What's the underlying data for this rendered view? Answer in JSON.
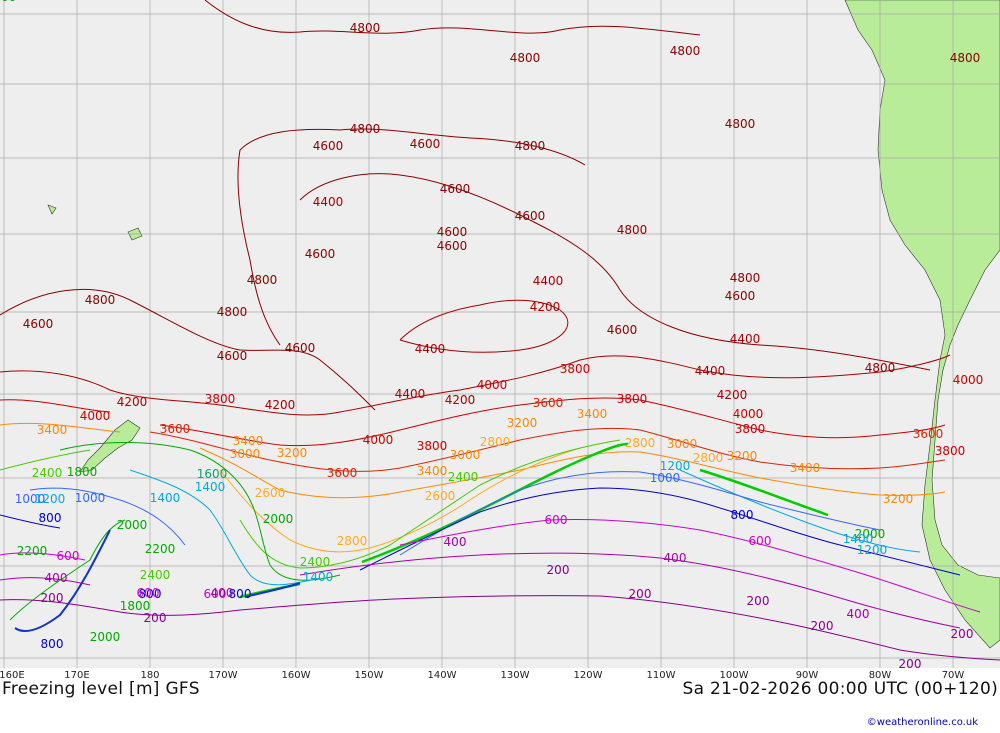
{
  "footer": {
    "title": "Freezing level [m] GFS",
    "valid_time": "Sa 21-02-2026 00:00 UTC (00+120)",
    "credit": "©weatheronline.co.uk"
  },
  "axis": {
    "longitude_labels": [
      "160E",
      "170E",
      "180",
      "170W",
      "160W",
      "150W",
      "140W",
      "130W",
      "120W",
      "110W",
      "100W",
      "90W",
      "80W",
      "70W"
    ]
  },
  "colors": {
    "ocean": "#eeeeee",
    "land": "#b8ec98",
    "grid": "#aaaaaa",
    "c4800": "#8b0000",
    "c4400": "#a80000",
    "c4000": "#cc0000",
    "c3600": "#dd2200",
    "c3200": "#ff8800",
    "c2800": "#ffaa22",
    "c2400": "#44cc00",
    "c2000": "#00aa00",
    "c1600": "#00aa66",
    "c1200": "#00aadd",
    "c1000": "#3366ff",
    "c800": "#0000cc",
    "c600": "#cc00cc",
    "c400": "#aa00aa",
    "c200": "#880088"
  },
  "contour_labels": [
    {
      "text": "4800",
      "color": "c4800"
    },
    {
      "text": "4800",
      "color": "c4800"
    },
    {
      "text": "4800",
      "color": "c4800"
    },
    {
      "text": "4800",
      "color": "c4800"
    },
    {
      "text": "4800",
      "color": "c4800"
    },
    {
      "text": "4800",
      "color": "c4800"
    },
    {
      "text": "4800",
      "color": "c4800"
    },
    {
      "text": "4800",
      "color": "c4800"
    },
    {
      "text": "4800",
      "color": "c4800"
    },
    {
      "text": "4800",
      "color": "c4800"
    },
    {
      "text": "4800",
      "color": "c4800"
    },
    {
      "text": "4800",
      "color": "c4800"
    },
    {
      "text": "4800",
      "color": "c4800"
    },
    {
      "text": "4600",
      "color": "c4800"
    },
    {
      "text": "4600",
      "color": "c4800"
    },
    {
      "text": "4600",
      "color": "c4800"
    },
    {
      "text": "4600",
      "color": "c4800"
    },
    {
      "text": "4600",
      "color": "c4800"
    },
    {
      "text": "4600",
      "color": "c4800"
    },
    {
      "text": "4600",
      "color": "c4800"
    },
    {
      "text": "4600",
      "color": "c4800"
    },
    {
      "text": "4600",
      "color": "c4800"
    },
    {
      "text": "4600",
      "color": "c4800"
    },
    {
      "text": "4600",
      "color": "c4800"
    },
    {
      "text": "4600",
      "color": "c4800"
    },
    {
      "text": "4400",
      "color": "c4400"
    },
    {
      "text": "4400",
      "color": "c4400"
    },
    {
      "text": "4400",
      "color": "c4400"
    },
    {
      "text": "4400",
      "color": "c4400"
    },
    {
      "text": "4400",
      "color": "c4400"
    },
    {
      "text": "4400",
      "color": "c4400"
    },
    {
      "text": "4200",
      "color": "c4400"
    },
    {
      "text": "4200",
      "color": "c4400"
    },
    {
      "text": "4200",
      "color": "c4400"
    },
    {
      "text": "4200",
      "color": "c4400"
    },
    {
      "text": "4200",
      "color": "c4400"
    },
    {
      "text": "4000",
      "color": "c4000"
    },
    {
      "text": "4000",
      "color": "c4000"
    },
    {
      "text": "4000",
      "color": "c4000"
    },
    {
      "text": "4000",
      "color": "c4000"
    },
    {
      "text": "4000",
      "color": "c4000"
    },
    {
      "text": "3800",
      "color": "c4000"
    },
    {
      "text": "3800",
      "color": "c4000"
    },
    {
      "text": "3800",
      "color": "c4000"
    },
    {
      "text": "3800",
      "color": "c4000"
    },
    {
      "text": "3800",
      "color": "c4000"
    },
    {
      "text": "3800",
      "color": "c4000"
    },
    {
      "text": "3600",
      "color": "c3600"
    },
    {
      "text": "3600",
      "color": "c3600"
    },
    {
      "text": "3600",
      "color": "c3600"
    },
    {
      "text": "3600",
      "color": "c3600"
    },
    {
      "text": "3400",
      "color": "c3200"
    },
    {
      "text": "3400",
      "color": "c3200"
    },
    {
      "text": "3400",
      "color": "c3200"
    },
    {
      "text": "3400",
      "color": "c3200"
    },
    {
      "text": "3400",
      "color": "c3200"
    },
    {
      "text": "3200",
      "color": "c3200"
    },
    {
      "text": "3200",
      "color": "c3200"
    },
    {
      "text": "3200",
      "color": "c3200"
    },
    {
      "text": "3200",
      "color": "c3200"
    },
    {
      "text": "3000",
      "color": "c3200"
    },
    {
      "text": "3000",
      "color": "c3200"
    },
    {
      "text": "3000",
      "color": "c3200"
    },
    {
      "text": "2800",
      "color": "c2800"
    },
    {
      "text": "2800",
      "color": "c2800"
    },
    {
      "text": "2800",
      "color": "c2800"
    },
    {
      "text": "2800",
      "color": "c2800"
    },
    {
      "text": "2600",
      "color": "c2800"
    },
    {
      "text": "2600",
      "color": "c2800"
    },
    {
      "text": "2400",
      "color": "c2400"
    },
    {
      "text": "2400",
      "color": "c2400"
    },
    {
      "text": "2400",
      "color": "c2400"
    },
    {
      "text": "2400",
      "color": "c2400"
    },
    {
      "text": "2200",
      "color": "c2000"
    },
    {
      "text": "2200",
      "color": "c2000"
    },
    {
      "text": "2000",
      "color": "c2000"
    },
    {
      "text": "2000",
      "color": "c2000"
    },
    {
      "text": "2000",
      "color": "c2000"
    },
    {
      "text": "2000",
      "color": "c2000"
    },
    {
      "text": "2200",
      "color": "c2000"
    },
    {
      "text": "1800",
      "color": "c2000"
    },
    {
      "text": "1800",
      "color": "c2000"
    },
    {
      "text": "1600",
      "color": "c1600"
    },
    {
      "text": "1400",
      "color": "c1200"
    },
    {
      "text": "1400",
      "color": "c1200"
    },
    {
      "text": "1400",
      "color": "c1200"
    },
    {
      "text": "1400",
      "color": "c1200"
    },
    {
      "text": "1200",
      "color": "c1200"
    },
    {
      "text": "1200",
      "color": "c1200"
    },
    {
      "text": "1200",
      "color": "c1200"
    },
    {
      "text": "1000",
      "color": "c1000"
    },
    {
      "text": "1000",
      "color": "c1000"
    },
    {
      "text": "1000",
      "color": "c1000"
    },
    {
      "text": "800",
      "color": "c800"
    },
    {
      "text": "800",
      "color": "c800"
    },
    {
      "text": "800",
      "color": "c800"
    },
    {
      "text": "800",
      "color": "c800"
    },
    {
      "text": "800",
      "color": "c800"
    },
    {
      "text": "600",
      "color": "c600"
    },
    {
      "text": "600",
      "color": "c600"
    },
    {
      "text": "600",
      "color": "c600"
    },
    {
      "text": "600",
      "color": "c600"
    },
    {
      "text": "600",
      "color": "c600"
    },
    {
      "text": "400",
      "color": "c400"
    },
    {
      "text": "400",
      "color": "c400"
    },
    {
      "text": "400",
      "color": "c400"
    },
    {
      "text": "400",
      "color": "c400"
    },
    {
      "text": "400",
      "color": "c400"
    },
    {
      "text": "200",
      "color": "c200"
    },
    {
      "text": "200",
      "color": "c200"
    },
    {
      "text": "200",
      "color": "c200"
    },
    {
      "text": "200",
      "color": "c200"
    },
    {
      "text": "200",
      "color": "c200"
    },
    {
      "text": "200",
      "color": "c200"
    },
    {
      "text": "200",
      "color": "c200"
    },
    {
      "text": "200",
      "color": "c200"
    }
  ]
}
